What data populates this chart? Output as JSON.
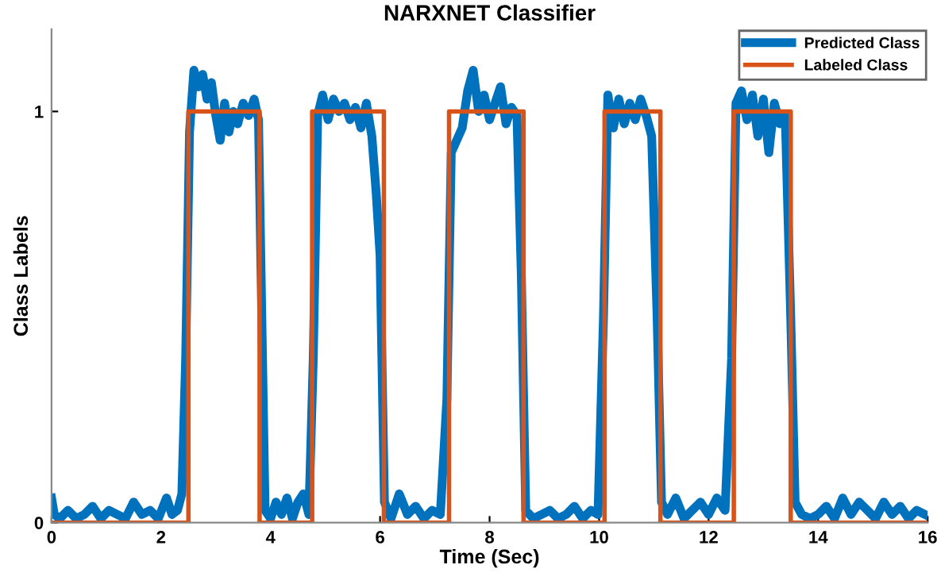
{
  "chart_data": {
    "type": "line",
    "title": "NARXNET Classifier",
    "xlabel": "Time (Sec)",
    "ylabel": "Class Labels",
    "xlim": [
      0,
      16
    ],
    "ylim": [
      0,
      1.2
    ],
    "xticks": [
      0,
      2,
      4,
      6,
      8,
      10,
      12,
      14,
      16
    ],
    "yticks": [
      0,
      1
    ],
    "grid": false,
    "legend": "top right",
    "series": [
      {
        "name": "Predicted Class",
        "color": "#0072bd",
        "x": [
          0,
          0.05,
          0.15,
          0.3,
          0.45,
          0.6,
          0.75,
          0.9,
          1.05,
          1.2,
          1.35,
          1.5,
          1.65,
          1.8,
          1.95,
          2.1,
          2.2,
          2.3,
          2.38,
          2.45,
          2.52,
          2.6,
          2.68,
          2.76,
          2.84,
          2.92,
          3.0,
          3.08,
          3.16,
          3.24,
          3.32,
          3.4,
          3.5,
          3.6,
          3.7,
          3.78,
          3.84,
          3.9,
          4.0,
          4.1,
          4.2,
          4.3,
          4.4,
          4.5,
          4.6,
          4.7,
          4.78,
          4.86,
          4.95,
          5.05,
          5.15,
          5.25,
          5.35,
          5.45,
          5.55,
          5.65,
          5.75,
          5.85,
          5.93,
          6.0,
          6.08,
          6.2,
          6.35,
          6.5,
          6.65,
          6.8,
          6.95,
          7.1,
          7.22,
          7.3,
          7.4,
          7.5,
          7.6,
          7.7,
          7.8,
          7.9,
          8.0,
          8.1,
          8.2,
          8.3,
          8.4,
          8.5,
          8.58,
          8.66,
          8.8,
          8.95,
          9.1,
          9.25,
          9.4,
          9.55,
          9.7,
          9.85,
          9.98,
          10.08,
          10.16,
          10.26,
          10.36,
          10.46,
          10.56,
          10.66,
          10.76,
          10.86,
          10.96,
          11.06,
          11.14,
          11.25,
          11.4,
          11.55,
          11.7,
          11.85,
          12.0,
          12.15,
          12.3,
          12.42,
          12.5,
          12.6,
          12.7,
          12.8,
          12.9,
          13.0,
          13.1,
          13.2,
          13.3,
          13.4,
          13.5,
          13.58,
          13.7,
          13.85,
          14.0,
          14.15,
          14.3,
          14.45,
          14.6,
          14.75,
          14.9,
          15.05,
          15.2,
          15.35,
          15.5,
          15.65,
          15.8,
          15.95
        ],
        "values": [
          0.06,
          0.02,
          0.01,
          0.03,
          0.01,
          0.02,
          0.04,
          0.01,
          0.03,
          0.02,
          0.01,
          0.05,
          0.02,
          0.03,
          0.01,
          0.06,
          0.02,
          0.03,
          0.07,
          0.4,
          0.95,
          1.1,
          1.06,
          1.09,
          1.03,
          1.07,
          0.99,
          0.93,
          1.02,
          0.95,
          1.0,
          0.97,
          1.02,
          0.99,
          1.03,
          0.98,
          0.5,
          0.03,
          0.01,
          0.05,
          0.02,
          0.06,
          0.01,
          0.05,
          0.07,
          0.02,
          0.4,
          0.99,
          1.04,
          0.98,
          1.03,
          1.0,
          1.02,
          0.98,
          1.01,
          0.96,
          1.02,
          0.94,
          0.8,
          0.65,
          0.05,
          0.01,
          0.07,
          0.02,
          0.04,
          0.01,
          0.03,
          0.02,
          0.3,
          0.9,
          0.93,
          0.96,
          1.05,
          1.1,
          1.0,
          1.04,
          0.98,
          1.02,
          1.06,
          0.97,
          1.01,
          0.99,
          0.6,
          0.03,
          0.01,
          0.02,
          0.03,
          0.01,
          0.02,
          0.04,
          0.01,
          0.03,
          0.02,
          0.5,
          1.04,
          0.96,
          1.03,
          0.97,
          1.02,
          0.98,
          1.03,
          0.99,
          0.94,
          0.5,
          0.05,
          0.02,
          0.06,
          0.01,
          0.03,
          0.05,
          0.02,
          0.06,
          0.03,
          0.4,
          1.02,
          1.05,
          0.98,
          1.04,
          0.94,
          1.03,
          0.9,
          1.02,
          0.97,
          0.99,
          0.5,
          0.05,
          0.02,
          0.01,
          0.02,
          0.04,
          0.01,
          0.06,
          0.02,
          0.05,
          0.03,
          0.01,
          0.05,
          0.02,
          0.04,
          0.01,
          0.03,
          0.02
        ]
      },
      {
        "name": "Labeled Class",
        "color": "#d95319",
        "x": [
          0,
          2.5,
          2.5,
          3.8,
          3.8,
          4.76,
          4.76,
          6.07,
          6.07,
          7.26,
          7.26,
          8.62,
          8.62,
          10.1,
          10.1,
          11.12,
          11.12,
          12.46,
          12.46,
          13.5,
          13.5,
          16
        ],
        "values": [
          0,
          0,
          1,
          1,
          0,
          0,
          1,
          1,
          0,
          0,
          1,
          1,
          0,
          0,
          1,
          1,
          0,
          0,
          1,
          1,
          0,
          0
        ]
      }
    ]
  }
}
